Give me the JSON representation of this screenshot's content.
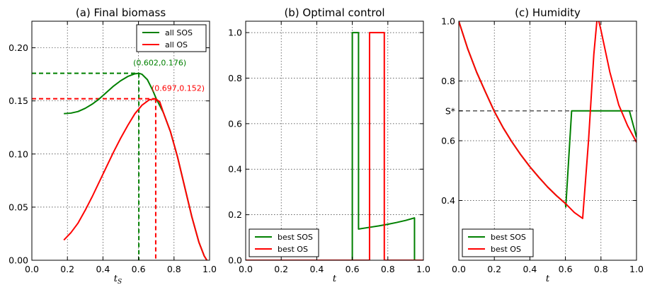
{
  "colors": {
    "green": "#008000",
    "red": "#ff0000",
    "gray": "#555555"
  },
  "chart_data": [
    {
      "type": "line",
      "title": "(a) Final biomass",
      "xlabel": "t_S",
      "xlim": [
        0,
        1
      ],
      "ylim": [
        0,
        0.225
      ],
      "xticks": [
        0.0,
        0.2,
        0.4,
        0.6,
        0.8,
        1.0
      ],
      "xtick_labels": [
        "0.0",
        "0.2",
        "0.4",
        "0.6",
        "0.8",
        "1.0"
      ],
      "yticks": [
        0.0,
        0.05,
        0.1,
        0.15,
        0.2
      ],
      "ytick_labels": [
        "0.00",
        "0.05",
        "0.10",
        "0.15",
        "0.20"
      ],
      "grid": true,
      "legend": "top-right",
      "series": [
        {
          "name": "all SOS",
          "color": "#008000",
          "points": [
            [
              0.18,
              0.138
            ],
            [
              0.22,
              0.1385
            ],
            [
              0.26,
              0.14
            ],
            [
              0.3,
              0.143
            ],
            [
              0.34,
              0.147
            ],
            [
              0.38,
              0.152
            ],
            [
              0.42,
              0.158
            ],
            [
              0.46,
              0.164
            ],
            [
              0.5,
              0.169
            ],
            [
              0.54,
              0.173
            ],
            [
              0.58,
              0.1755
            ],
            [
              0.602,
              0.176
            ],
            [
              0.62,
              0.175
            ],
            [
              0.65,
              0.17
            ],
            [
              0.68,
              0.16
            ],
            [
              0.7,
              0.152
            ],
            [
              0.74,
              0.139
            ],
            [
              0.78,
              0.121
            ],
            [
              0.82,
              0.097
            ],
            [
              0.86,
              0.069
            ],
            [
              0.9,
              0.041
            ],
            [
              0.94,
              0.017
            ],
            [
              0.97,
              0.004
            ],
            [
              0.985,
              0.0
            ]
          ]
        },
        {
          "name": "all OS",
          "color": "#ff0000",
          "points": [
            [
              0.18,
              0.019
            ],
            [
              0.22,
              0.026
            ],
            [
              0.26,
              0.035
            ],
            [
              0.3,
              0.047
            ],
            [
              0.34,
              0.06
            ],
            [
              0.38,
              0.074
            ],
            [
              0.42,
              0.088
            ],
            [
              0.46,
              0.102
            ],
            [
              0.5,
              0.115
            ],
            [
              0.54,
              0.127
            ],
            [
              0.58,
              0.138
            ],
            [
              0.62,
              0.146
            ],
            [
              0.66,
              0.151
            ],
            [
              0.697,
              0.152
            ],
            [
              0.72,
              0.149
            ],
            [
              0.74,
              0.139
            ],
            [
              0.78,
              0.121
            ],
            [
              0.82,
              0.097
            ],
            [
              0.86,
              0.069
            ],
            [
              0.9,
              0.041
            ],
            [
              0.94,
              0.017
            ],
            [
              0.97,
              0.004
            ],
            [
              0.985,
              0.0
            ]
          ]
        }
      ],
      "annotations": [
        {
          "text": "(0.602,0.176)",
          "x": 0.602,
          "y": 0.176,
          "color": "#008000"
        },
        {
          "text": "(0.697,0.152)",
          "x": 0.697,
          "y": 0.152,
          "color": "#ff0000"
        }
      ]
    },
    {
      "type": "line",
      "title": "(b) Optimal control",
      "xlabel": "t",
      "xlim": [
        0,
        1
      ],
      "ylim": [
        0,
        1.05
      ],
      "xticks": [
        0.0,
        0.2,
        0.4,
        0.6,
        0.8,
        1.0
      ],
      "xtick_labels": [
        "0.0",
        "0.2",
        "0.4",
        "0.6",
        "0.8",
        "1.0"
      ],
      "yticks": [
        0.0,
        0.2,
        0.4,
        0.6,
        0.8,
        1.0
      ],
      "ytick_labels": [
        "0.0",
        "0.2",
        "0.4",
        "0.6",
        "0.8",
        "1.0"
      ],
      "grid": true,
      "legend": "bottom-left",
      "series": [
        {
          "name": "best SOS",
          "color": "#008000",
          "points": [
            [
              0.0,
              0.0
            ],
            [
              0.6,
              0.0
            ],
            [
              0.6,
              1.0
            ],
            [
              0.635,
              1.0
            ],
            [
              0.635,
              0.137
            ],
            [
              0.7,
              0.145
            ],
            [
              0.75,
              0.151
            ],
            [
              0.8,
              0.158
            ],
            [
              0.85,
              0.166
            ],
            [
              0.9,
              0.175
            ],
            [
              0.95,
              0.186
            ],
            [
              0.95,
              0.0
            ],
            [
              1.0,
              0.0
            ]
          ]
        },
        {
          "name": "best OS",
          "color": "#ff0000",
          "points": [
            [
              0.0,
              0.0
            ],
            [
              0.697,
              0.0
            ],
            [
              0.697,
              1.0
            ],
            [
              0.78,
              1.0
            ],
            [
              0.78,
              0.0
            ],
            [
              1.0,
              0.0
            ]
          ]
        }
      ]
    },
    {
      "type": "line",
      "title": "(c) Humidity",
      "xlabel": "t",
      "xlim": [
        0,
        1
      ],
      "ylim": [
        0.2,
        1.0
      ],
      "xticks": [
        0.0,
        0.2,
        0.4,
        0.6,
        0.8,
        1.0
      ],
      "xtick_labels": [
        "0.0",
        "0.2",
        "0.4",
        "0.6",
        "0.8",
        "1.0"
      ],
      "yticks": [
        0.4,
        0.6,
        0.8,
        1.0
      ],
      "ytick_labels": [
        "0.4",
        "0.6",
        "0.8",
        "1.0"
      ],
      "extra_ytick": {
        "value": 0.7,
        "label": "S*"
      },
      "hline": {
        "y": 0.7,
        "color": "#555555"
      },
      "grid": true,
      "legend": "bottom-left",
      "series": [
        {
          "name": "best SOS",
          "color": "#008000",
          "points": [
            [
              0.0,
              1.0
            ],
            [
              0.05,
              0.908
            ],
            [
              0.1,
              0.83
            ],
            [
              0.15,
              0.763
            ],
            [
              0.2,
              0.698
            ],
            [
              0.25,
              0.643
            ],
            [
              0.3,
              0.595
            ],
            [
              0.35,
              0.552
            ],
            [
              0.4,
              0.513
            ],
            [
              0.45,
              0.478
            ],
            [
              0.5,
              0.445
            ],
            [
              0.55,
              0.416
            ],
            [
              0.6,
              0.39
            ],
            [
              0.602,
              0.378
            ],
            [
              0.635,
              0.7
            ],
            [
              0.96,
              0.7
            ],
            [
              1.0,
              0.612
            ]
          ]
        },
        {
          "name": "best OS",
          "color": "#ff0000",
          "points": [
            [
              0.0,
              1.0
            ],
            [
              0.05,
              0.908
            ],
            [
              0.1,
              0.83
            ],
            [
              0.15,
              0.763
            ],
            [
              0.2,
              0.698
            ],
            [
              0.25,
              0.643
            ],
            [
              0.3,
              0.595
            ],
            [
              0.35,
              0.552
            ],
            [
              0.4,
              0.513
            ],
            [
              0.45,
              0.478
            ],
            [
              0.5,
              0.445
            ],
            [
              0.55,
              0.416
            ],
            [
              0.6,
              0.39
            ],
            [
              0.65,
              0.36
            ],
            [
              0.697,
              0.34
            ],
            [
              0.73,
              0.6
            ],
            [
              0.76,
              0.89
            ],
            [
              0.78,
              1.02
            ],
            [
              0.8,
              0.97
            ],
            [
              0.85,
              0.83
            ],
            [
              0.9,
              0.72
            ],
            [
              0.95,
              0.65
            ],
            [
              1.0,
              0.595
            ]
          ]
        }
      ]
    }
  ]
}
